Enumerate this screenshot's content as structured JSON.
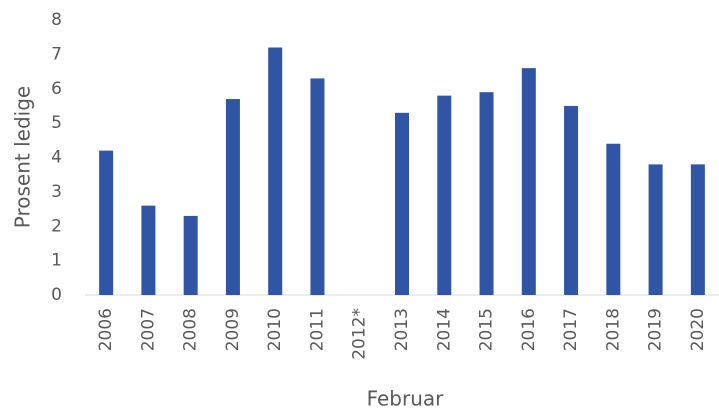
{
  "chart_data": {
    "type": "bar",
    "categories": [
      "2006",
      "2007",
      "2008",
      "2009",
      "2010",
      "2011",
      "2012*",
      "2013",
      "2014",
      "2015",
      "2016",
      "2017",
      "2018",
      "2019",
      "2020"
    ],
    "values": [
      4.2,
      2.6,
      2.3,
      5.7,
      7.2,
      6.3,
      null,
      5.3,
      5.8,
      5.9,
      6.6,
      5.5,
      4.4,
      3.8,
      3.8
    ],
    "color": "#2f55a4",
    "y_label": "Prosent ledige",
    "x_label": "Februar",
    "ylim": [
      0,
      8
    ],
    "yticks": [
      0,
      1,
      2,
      3,
      4,
      5,
      6,
      7,
      8
    ],
    "grid": false
  }
}
